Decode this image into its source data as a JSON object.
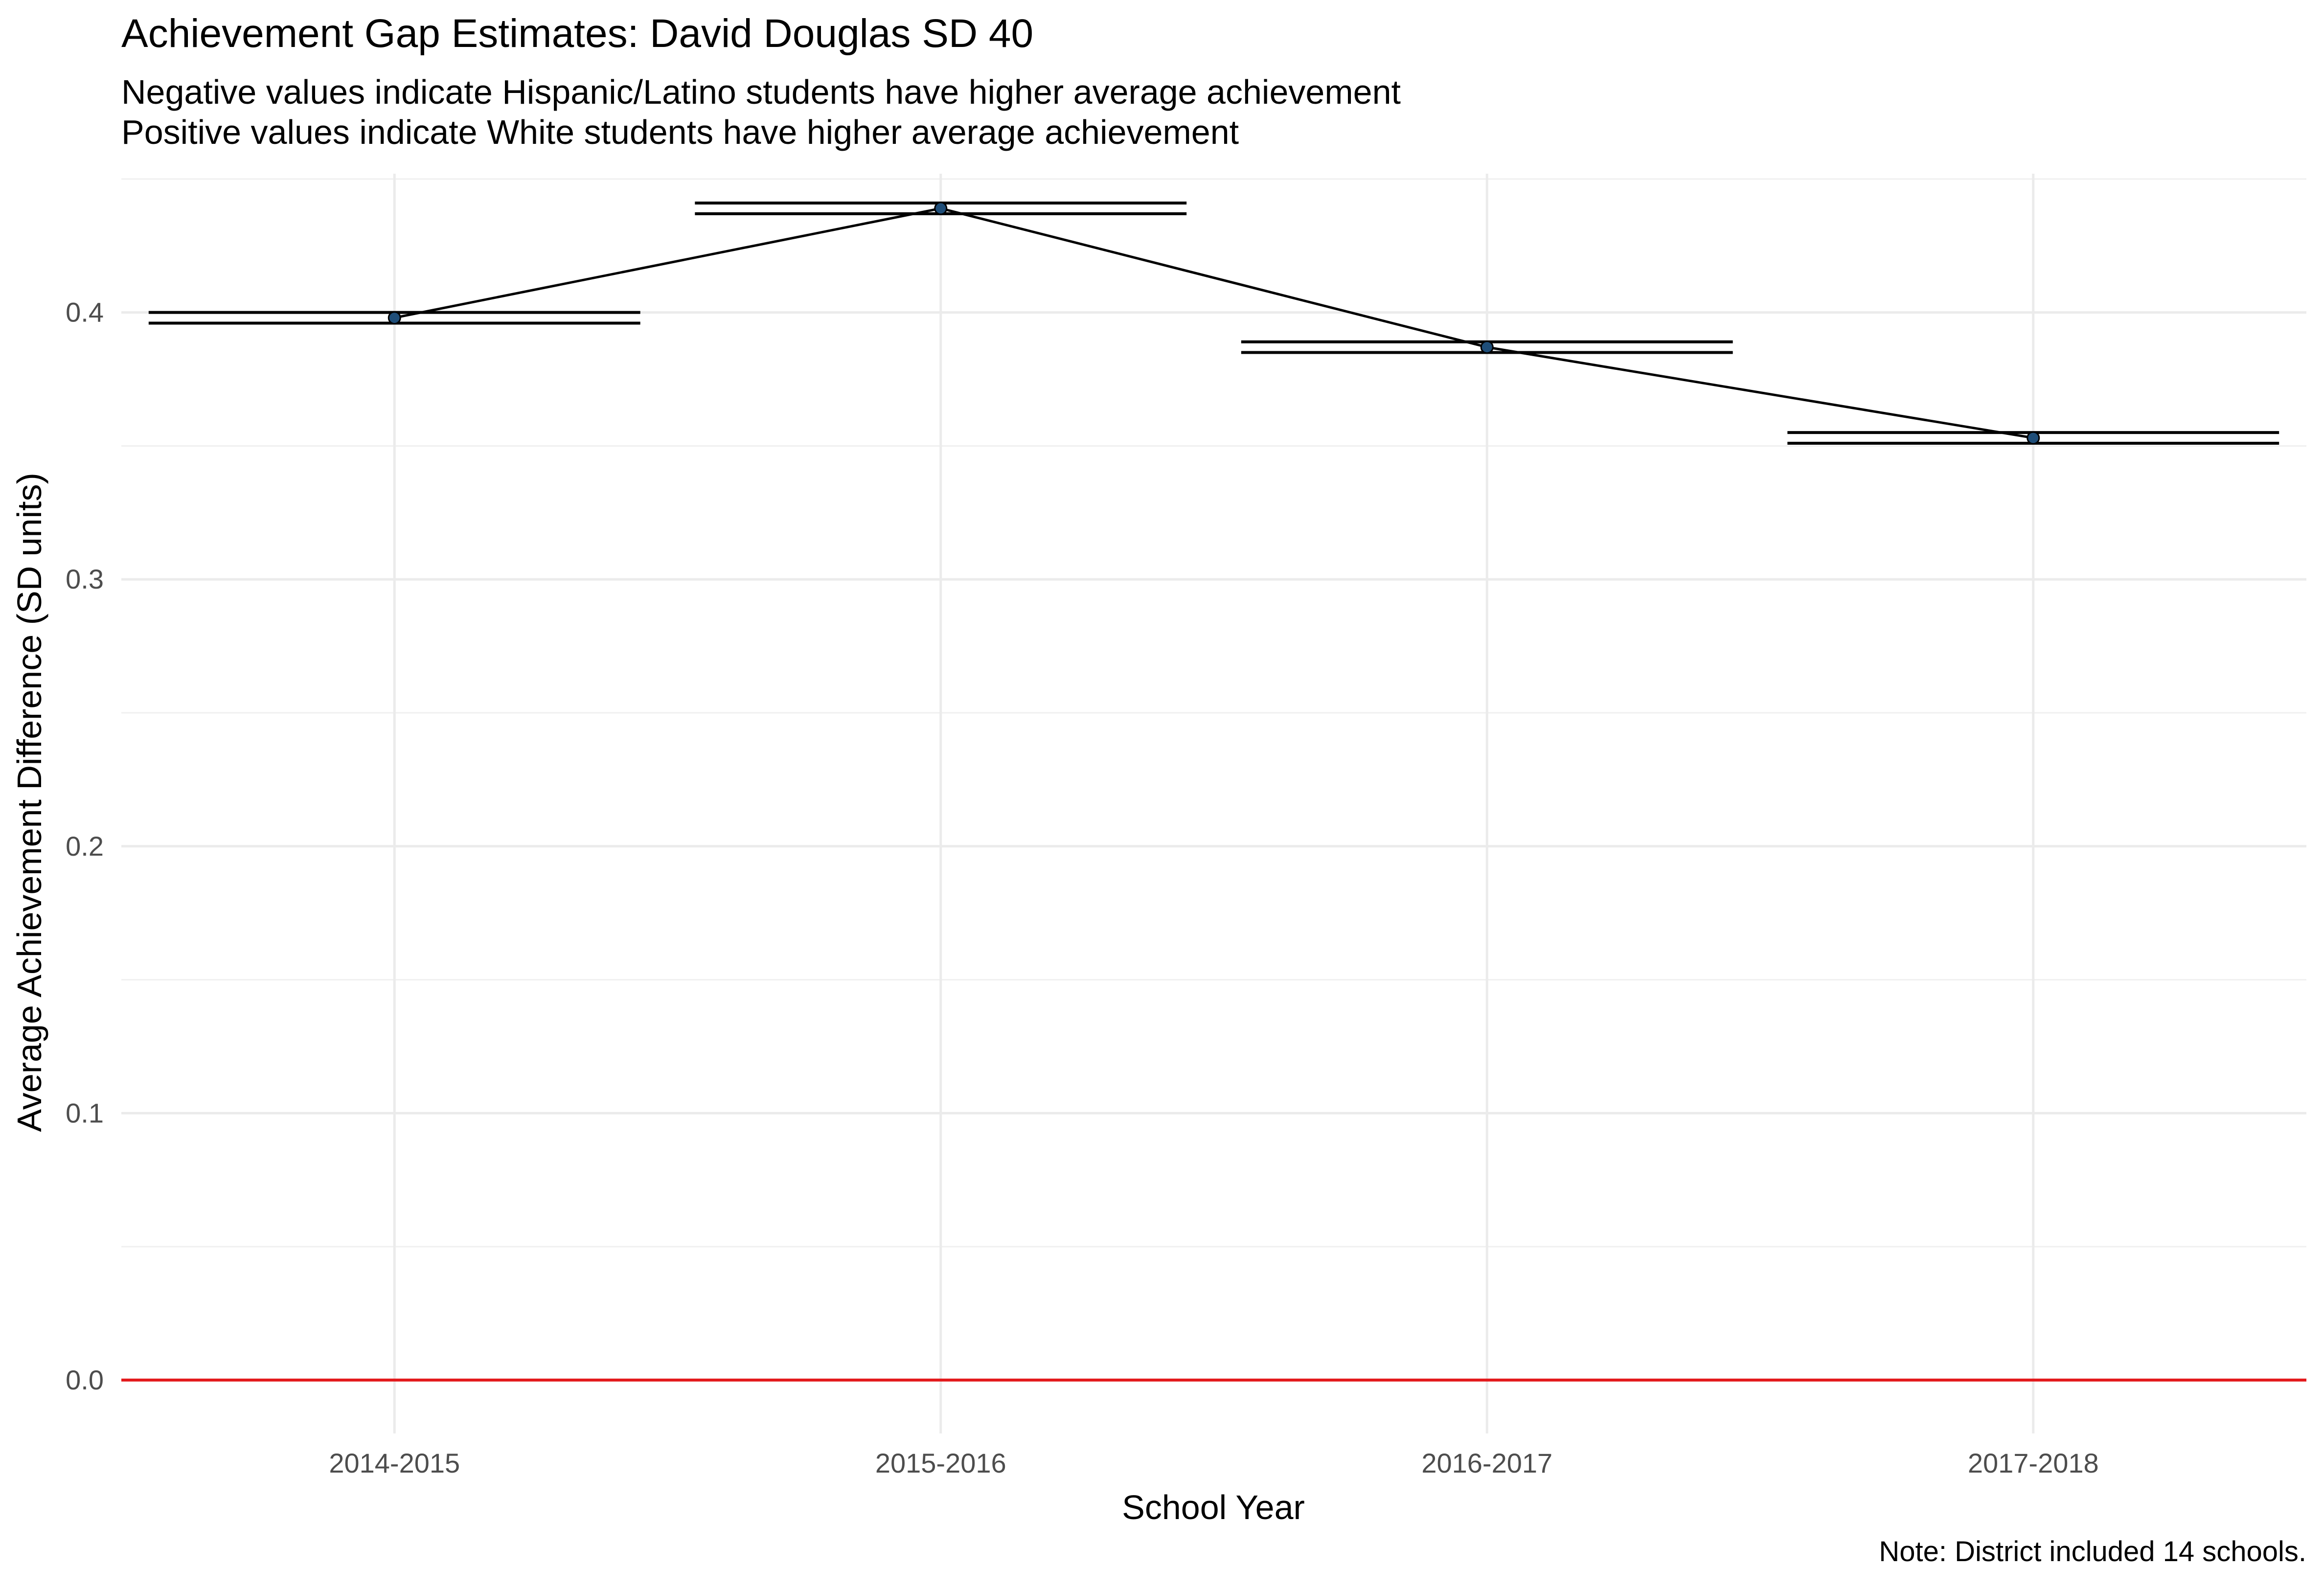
{
  "chart_data": {
    "type": "line",
    "title": "Achievement Gap Estimates: David Douglas SD 40",
    "subtitle_lines": [
      "Negative values indicate Hispanic/Latino students have higher average achievement",
      "Positive values indicate White students have higher average achievement"
    ],
    "caption": "Note: District included 14 schools.",
    "xlabel": "School Year",
    "ylabel": "Average Achievement Difference (SD units)",
    "categories": [
      "2014-2015",
      "2015-2016",
      "2016-2017",
      "2017-2018"
    ],
    "values": [
      0.398,
      0.439,
      0.387,
      0.353
    ],
    "error_bars": [
      {
        "lower": 0.396,
        "upper": 0.4
      },
      {
        "lower": 0.437,
        "upper": 0.441
      },
      {
        "lower": 0.385,
        "upper": 0.389
      },
      {
        "lower": 0.351,
        "upper": 0.355
      }
    ],
    "ylim": [
      -0.02,
      0.452
    ],
    "yticks": [
      0.0,
      0.1,
      0.2,
      0.3,
      0.4
    ],
    "ytick_labels": [
      "0.0",
      "0.1",
      "0.2",
      "0.3",
      "0.4"
    ],
    "reference_line": {
      "y": 0.0,
      "color": "#e31a1c"
    },
    "line_color": "#000000",
    "point_color": "#1f4e79",
    "grid": true,
    "legend": "none"
  }
}
